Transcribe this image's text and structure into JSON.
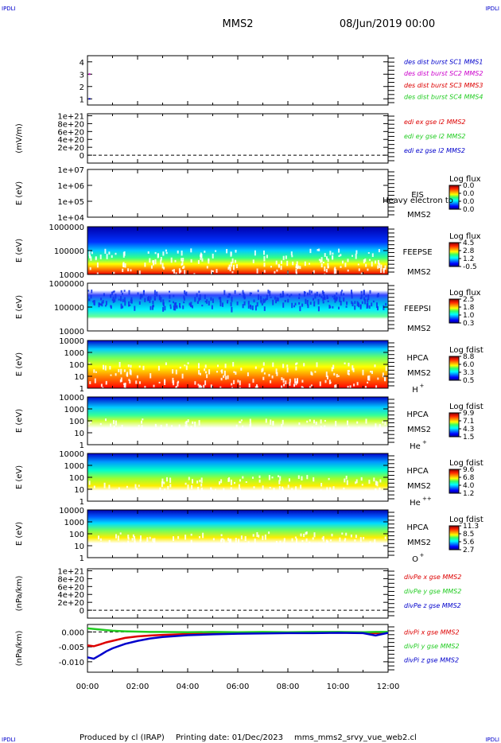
{
  "header": {
    "corner_tl": "IPDLI",
    "corner_tr": "IPDLI",
    "corner_bl": "IPDLI",
    "corner_br": "IPDLI",
    "mission": "MMS2",
    "datetime": "08/Jun/2019 00:00"
  },
  "footer": {
    "produced_by": "Produced by cl (IRAP)",
    "printing_date": "Printing date: 01/Dec/2023",
    "script_name": "mms_mms2_srvy_vue_web2.cl"
  },
  "colors": {
    "series_blue": "#0000cc",
    "series_red": "#dd0000",
    "series_green": "#22cc22",
    "series_magenta": "#cc00cc"
  },
  "chart_data": {
    "type": "line",
    "x_ticks": [
      "00:00",
      "02:00",
      "04:00",
      "06:00",
      "08:00",
      "10:00",
      "12:00"
    ],
    "xlim_hours": [
      0,
      12
    ],
    "panels": [
      {
        "id": "burst",
        "type": "scatter",
        "yticks": [
          "4",
          "3",
          "2",
          "1"
        ],
        "ylim": [
          0.5,
          4.5
        ],
        "legend": [
          {
            "text": "des dist burst SC1 MMS1",
            "color": "#0000cc"
          },
          {
            "text": "des dist burst SC2 MMS2",
            "color": "#cc00cc"
          },
          {
            "text": "des dist burst SC3 MMS3",
            "color": "#dd0000"
          },
          {
            "text": "des dist burst SC4 MMS4",
            "color": "#22cc22"
          }
        ],
        "points": [
          {
            "x": 0.05,
            "y": 3,
            "color": "#cc00cc"
          },
          {
            "x": 0.05,
            "y": 1,
            "color": "#0000cc"
          }
        ]
      },
      {
        "id": "edi",
        "type": "line",
        "ylabel": "(mV/m)",
        "yticks": [
          "1e+21",
          "8e+20",
          "6e+20",
          "4e+20",
          "2e+20",
          "0"
        ],
        "ylim": [
          -2e+20,
          1.05e+21
        ],
        "legend": [
          {
            "text": "edi ex gse l2 MMS2",
            "color": "#dd0000"
          },
          {
            "text": "edi ey gse l2 MMS2",
            "color": "#22cc22"
          },
          {
            "text": "edi ez gse l2 MMS2",
            "color": "#0000cc"
          }
        ]
      },
      {
        "id": "eis",
        "type": "heatmap",
        "ylabel": "E (eV)",
        "yticks": [
          "1e+07",
          "1e+06",
          "1e+05",
          "1e+04"
        ],
        "labels": [
          "EIS",
          "MMS2"
        ],
        "overlay_note": "Heavy electron to",
        "colorbar_title": "Log flux",
        "colorbar_ticks": [
          "0.0",
          "0.0",
          "0.0",
          "0.0"
        ]
      },
      {
        "id": "feepse",
        "type": "heatmap",
        "ylabel": "E (eV)",
        "yticks": [
          "1000000",
          "100000",
          "10000"
        ],
        "labels": [
          "FEEPSE",
          "MMS2"
        ],
        "colorbar_title": "Log flux",
        "colorbar_ticks": [
          "4.5",
          "2.8",
          "1.2",
          "-0.5"
        ]
      },
      {
        "id": "feepsi",
        "type": "heatmap",
        "ylabel": "E (eV)",
        "yticks": [
          "1000000",
          "100000",
          "10000"
        ],
        "labels": [
          "FEEPSI",
          "MMS2"
        ],
        "colorbar_title": "Log flux",
        "colorbar_ticks": [
          "2.5",
          "1.8",
          "1.0",
          "0.3"
        ]
      },
      {
        "id": "hpca_h",
        "type": "heatmap",
        "ylabel": "E (eV)",
        "yticks": [
          "10000",
          "1000",
          "100",
          "10",
          "1"
        ],
        "labels": [
          "HPCA",
          "MMS2"
        ],
        "species": "H",
        "species_charge": "+",
        "colorbar_title": "Log fdist",
        "colorbar_ticks": [
          "8.8",
          "6.0",
          "3.3",
          "0.5"
        ]
      },
      {
        "id": "hpca_he",
        "type": "heatmap",
        "ylabel": "E (eV)",
        "yticks": [
          "10000",
          "1000",
          "100",
          "10",
          "1"
        ],
        "labels": [
          "HPCA",
          "MMS2"
        ],
        "species": "He",
        "species_charge": "+",
        "colorbar_title": "Log fdist",
        "colorbar_ticks": [
          "9.9",
          "7.1",
          "4.3",
          "1.5"
        ]
      },
      {
        "id": "hpca_he2",
        "type": "heatmap",
        "ylabel": "E (eV)",
        "yticks": [
          "10000",
          "1000",
          "100",
          "10",
          "1"
        ],
        "labels": [
          "HPCA",
          "MMS2"
        ],
        "species": "He",
        "species_charge": "++",
        "colorbar_title": "Log fdist",
        "colorbar_ticks": [
          "9.6",
          "6.8",
          "4.0",
          "1.2"
        ]
      },
      {
        "id": "hpca_o",
        "type": "heatmap",
        "ylabel": "E (eV)",
        "yticks": [
          "10000",
          "1000",
          "100",
          "10",
          "1"
        ],
        "labels": [
          "HPCA",
          "MMS2"
        ],
        "species": "O",
        "species_charge": "+",
        "colorbar_title": "Log fdist",
        "colorbar_ticks": [
          "11.3",
          "8.5",
          "5.6",
          "2.7"
        ]
      },
      {
        "id": "divpe",
        "type": "line",
        "ylabel": "(nPa/km)",
        "yticks": [
          "1e+21",
          "8e+20",
          "6e+20",
          "4e+20",
          "2e+20",
          "0"
        ],
        "ylim": [
          -2e+20,
          1.05e+21
        ],
        "legend": [
          {
            "text": "divPe x gse MMS2",
            "color": "#dd0000"
          },
          {
            "text": "divPe y gse MMS2",
            "color": "#22cc22"
          },
          {
            "text": "divPe z gse MMS2",
            "color": "#0000cc"
          }
        ]
      },
      {
        "id": "divpi",
        "type": "line",
        "ylabel": "(nPa/km)",
        "yticks": [
          "0.000",
          "-0.005",
          "-0.010"
        ],
        "ylim": [
          -0.0135,
          0.0025
        ],
        "legend": [
          {
            "text": "divPi x gse MMS2",
            "color": "#dd0000"
          },
          {
            "text": "divPi y gse MMS2",
            "color": "#22cc22"
          },
          {
            "text": "divPi z gse MMS2",
            "color": "#0000cc"
          }
        ],
        "series": [
          {
            "name": "divPi x gse MMS2",
            "color": "#dd0000",
            "x": [
              0,
              0.25,
              0.5,
              0.75,
              1.0,
              1.5,
              2.0,
              2.5,
              3.0,
              4.0,
              5.0,
              6.0,
              7.0,
              8.0,
              9.0,
              10.0,
              11.0,
              11.5,
              12.0
            ],
            "y": [
              -0.0045,
              -0.0048,
              -0.0042,
              -0.0035,
              -0.003,
              -0.002,
              -0.0015,
              -0.0012,
              -0.001,
              -0.0007,
              -0.0005,
              -0.0004,
              -0.0004,
              -0.0003,
              -0.0003,
              -0.0002,
              -0.0003,
              -0.0004,
              -0.0002
            ]
          },
          {
            "name": "divPi y gse MMS2",
            "color": "#22cc22",
            "x": [
              0,
              0.25,
              0.5,
              0.75,
              1.0,
              1.5,
              2.0,
              2.5,
              3.0,
              4.0,
              5.0,
              6.0,
              7.0,
              8.0,
              9.0,
              10.0,
              11.0,
              11.5,
              12.0
            ],
            "y": [
              0.0012,
              0.001,
              0.0008,
              0.0006,
              0.0004,
              0.0002,
              0.0001,
              0.0,
              0.0,
              -0.0001,
              0.0,
              -0.0001,
              0.0,
              -0.0001,
              0.0,
              0.0,
              -0.0001,
              0.0,
              0.0
            ]
          },
          {
            "name": "divPi z gse MMS2",
            "color": "#0000cc",
            "x": [
              0,
              0.25,
              0.5,
              0.75,
              1.0,
              1.5,
              2.0,
              2.5,
              3.0,
              4.0,
              5.0,
              6.0,
              7.0,
              8.0,
              9.0,
              10.0,
              11.0,
              11.5,
              12.0
            ],
            "y": [
              -0.0085,
              -0.009,
              -0.0078,
              -0.0065,
              -0.0055,
              -0.004,
              -0.003,
              -0.0022,
              -0.0017,
              -0.0011,
              -0.0008,
              -0.0006,
              -0.0005,
              -0.0004,
              -0.0004,
              -0.0003,
              -0.0004,
              -0.0012,
              -0.0003
            ]
          }
        ]
      }
    ]
  }
}
